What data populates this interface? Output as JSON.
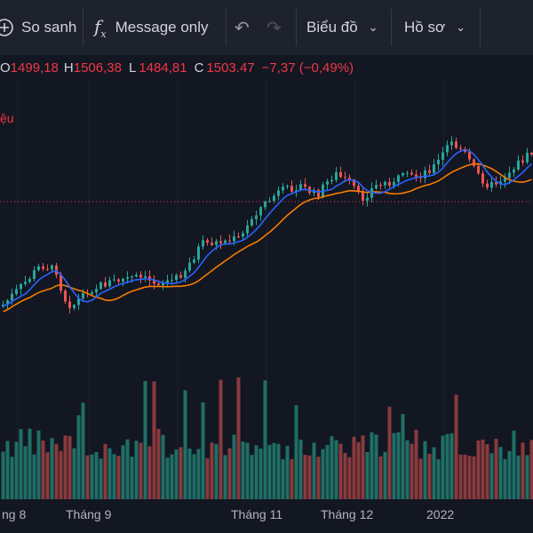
{
  "toolbar": {
    "compare_label": "So sanh",
    "message_label": "Message only",
    "chart_menu_label": "Biểu đồ",
    "profile_menu_label": "Hồ sơ"
  },
  "ohlc": {
    "open_key": "O",
    "open": "1499,18",
    "high_key": "H",
    "high": "1506,38",
    "low_key": "L",
    "low": "1484,81",
    "close_key": "C",
    "close": "1503.47",
    "change": "−7,37 (−0,49%)"
  },
  "indicator_label": "ệu",
  "colors": {
    "up": "#26a69a",
    "down": "#ef5350",
    "ma_fast": "#2962ff",
    "ma_slow": "#f57c00",
    "background": "#131722"
  },
  "chart_data": {
    "type": "candlestick",
    "price_line": 1503.47,
    "x_ticks": [
      "ng 8",
      "Tháng 9",
      "Tháng 11",
      "Tháng 12",
      "2022"
    ],
    "volume_trend": "candles colored by direction, volume bars beneath"
  }
}
